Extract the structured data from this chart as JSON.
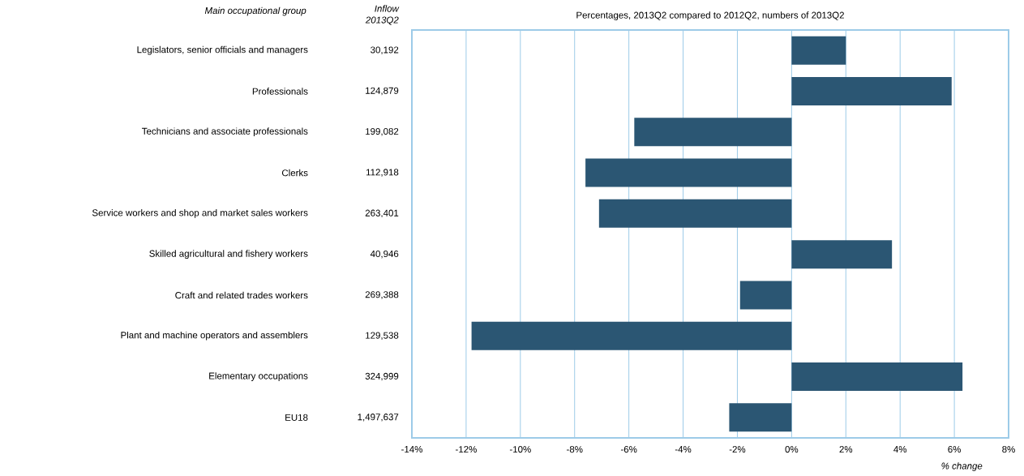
{
  "chart_data": {
    "type": "bar",
    "orientation": "horizontal",
    "title": "Percentages, 2013Q2 compared to 2012Q2, numbers of 2013Q2",
    "ylabel": "Main occupational group",
    "y2label": "Inflow 2013Q2",
    "xlabel": "% change",
    "categories": [
      "Legislators, senior officials and managers",
      "Professionals",
      "Technicians and associate professionals",
      "Clerks",
      "Service workers and shop and market sales workers",
      "Skilled agricultural and fishery workers",
      "Craft and related trades workers",
      "Plant and machine operators and assemblers",
      "Elementary occupations",
      "EU18"
    ],
    "y2_categories": [
      "30,192",
      "124,879",
      "199,082",
      "112,918",
      "263,401",
      "40,946",
      "269,388",
      "129,538",
      "324,999",
      "1,497,637"
    ],
    "values": [
      2.0,
      5.9,
      -5.8,
      -7.6,
      -7.1,
      3.7,
      -1.9,
      -11.8,
      6.3,
      -2.3
    ],
    "color": "#2b5673",
    "xlim": [
      -14,
      8
    ],
    "xticks": [
      {
        "value": -14,
        "label": "-14%"
      },
      {
        "value": -12,
        "label": "-12%"
      },
      {
        "value": -10,
        "label": "-10%"
      },
      {
        "value": -8,
        "label": "-8%"
      },
      {
        "value": -6,
        "label": "-6%"
      },
      {
        "value": -4,
        "label": "-4%"
      },
      {
        "value": -2,
        "label": "-2%"
      },
      {
        "value": 0,
        "label": "0%"
      },
      {
        "value": 2,
        "label": "2%"
      },
      {
        "value": 4,
        "label": "4%"
      },
      {
        "value": 6,
        "label": "6%"
      },
      {
        "value": 8,
        "label": "8%"
      }
    ],
    "grid": "x"
  }
}
